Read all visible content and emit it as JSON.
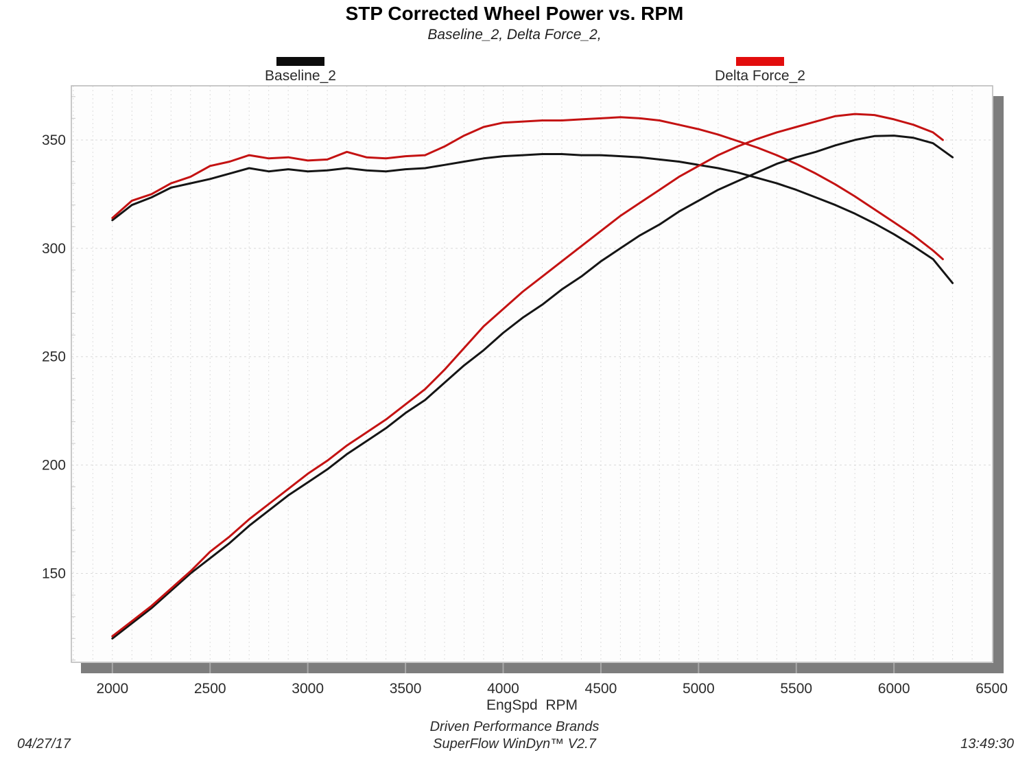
{
  "title": "STP Corrected Wheel Power vs. RPM",
  "subtitle": "Baseline_2, Delta Force_2,",
  "legend": [
    {
      "label": "Baseline_2",
      "color": "#0c0c0c"
    },
    {
      "label": "Delta Force_2",
      "color": "#e20d0d"
    }
  ],
  "footer": {
    "xlabel": "EngSpd  RPM",
    "brand": "Driven Performance Brands",
    "software": "SuperFlow WinDyn™ V2.7",
    "date": "04/27/17",
    "time": "13:49:30"
  },
  "chart_data": {
    "type": "line",
    "title": "STP Corrected Wheel Power vs. RPM",
    "xlabel": "EngSpd RPM",
    "ylabel": "",
    "xlim": [
      1790,
      6505
    ],
    "ylim": [
      109,
      375
    ],
    "x_ticks": [
      2000,
      2500,
      3000,
      3500,
      4000,
      4500,
      5000,
      5500,
      6000,
      6500
    ],
    "y_ticks": [
      150,
      200,
      250,
      300,
      350
    ],
    "grid": "dashed light-gray, vertical minor every 100 RPM, horizontal every 50",
    "legend_position": "top",
    "series": [
      {
        "name": "Baseline_2 torque",
        "color": "#151515",
        "x": [
          2000,
          2100,
          2200,
          2300,
          2400,
          2500,
          2600,
          2700,
          2800,
          2900,
          3000,
          3100,
          3200,
          3300,
          3400,
          3500,
          3600,
          3700,
          3800,
          3900,
          4000,
          4100,
          4200,
          4300,
          4400,
          4500,
          4600,
          4700,
          4800,
          4900,
          5000,
          5100,
          5200,
          5300,
          5400,
          5500,
          5600,
          5700,
          5800,
          5900,
          6000,
          6100,
          6200,
          6300
        ],
        "y": [
          313,
          320,
          323.5,
          328,
          330,
          332,
          334.5,
          337,
          335.5,
          336.5,
          335.5,
          336,
          337,
          336,
          335.5,
          336.5,
          337,
          338.5,
          340,
          341.5,
          342.5,
          343,
          343.5,
          343.5,
          343,
          343,
          342.5,
          342,
          341,
          340,
          338.5,
          337,
          335,
          332.5,
          330,
          327,
          323.5,
          320,
          316,
          311.5,
          306.5,
          301,
          295,
          284
        ]
      },
      {
        "name": "Delta Force_2 torque",
        "color": "#c41212",
        "x": [
          2000,
          2100,
          2200,
          2300,
          2400,
          2500,
          2600,
          2700,
          2800,
          2900,
          3000,
          3100,
          3200,
          3300,
          3400,
          3500,
          3600,
          3700,
          3800,
          3900,
          4000,
          4100,
          4200,
          4300,
          4400,
          4500,
          4600,
          4700,
          4800,
          4900,
          5000,
          5100,
          5200,
          5300,
          5400,
          5500,
          5600,
          5700,
          5800,
          5900,
          6000,
          6100,
          6200,
          6250
        ],
        "y": [
          314,
          322,
          325,
          330,
          333,
          338,
          340,
          343,
          341.5,
          342,
          340.5,
          341,
          344.5,
          342,
          341.5,
          342.5,
          343,
          347,
          352,
          356,
          358,
          358.5,
          359,
          359,
          359.5,
          360,
          360.5,
          360,
          359,
          357,
          355,
          352.5,
          349.5,
          346.5,
          343,
          339,
          334.5,
          329.5,
          324,
          318,
          312,
          306,
          299,
          295
        ]
      },
      {
        "name": "Baseline_2 power",
        "color": "#151515",
        "x": [
          2000,
          2100,
          2200,
          2300,
          2400,
          2500,
          2600,
          2700,
          2800,
          2900,
          3000,
          3100,
          3200,
          3300,
          3400,
          3500,
          3600,
          3700,
          3800,
          3900,
          4000,
          4100,
          4200,
          4300,
          4400,
          4500,
          4600,
          4700,
          4800,
          4900,
          5000,
          5100,
          5200,
          5300,
          5400,
          5500,
          5600,
          5700,
          5800,
          5900,
          6000,
          6100,
          6200,
          6300
        ],
        "y": [
          120,
          127,
          134,
          142,
          150,
          157,
          164,
          172,
          179,
          186,
          192,
          198,
          205,
          211,
          217,
          224,
          230,
          238,
          246,
          253,
          261,
          268,
          274,
          281,
          287,
          294,
          300,
          306,
          311,
          317,
          322,
          327,
          331,
          335,
          339,
          342,
          344.5,
          347.5,
          350,
          351.8,
          352,
          351,
          348.5,
          342
        ]
      },
      {
        "name": "Delta Force_2 power",
        "color": "#c41212",
        "x": [
          2000,
          2100,
          2200,
          2300,
          2400,
          2500,
          2600,
          2700,
          2800,
          2900,
          3000,
          3100,
          3200,
          3300,
          3400,
          3500,
          3600,
          3700,
          3800,
          3900,
          4000,
          4100,
          4200,
          4300,
          4400,
          4500,
          4600,
          4700,
          4800,
          4900,
          5000,
          5100,
          5200,
          5300,
          5400,
          5500,
          5600,
          5700,
          5800,
          5900,
          6000,
          6100,
          6200,
          6250
        ],
        "y": [
          121,
          128,
          135,
          143,
          151,
          160,
          167,
          175,
          182,
          189,
          196,
          202,
          209,
          215,
          221,
          228,
          235,
          244,
          254,
          264,
          272,
          280,
          287,
          294,
          301,
          308,
          315,
          321,
          327,
          333,
          338,
          343,
          347,
          350.5,
          353.5,
          356,
          358.5,
          361,
          362,
          361.5,
          359.5,
          357,
          353.5,
          350
        ]
      }
    ]
  }
}
